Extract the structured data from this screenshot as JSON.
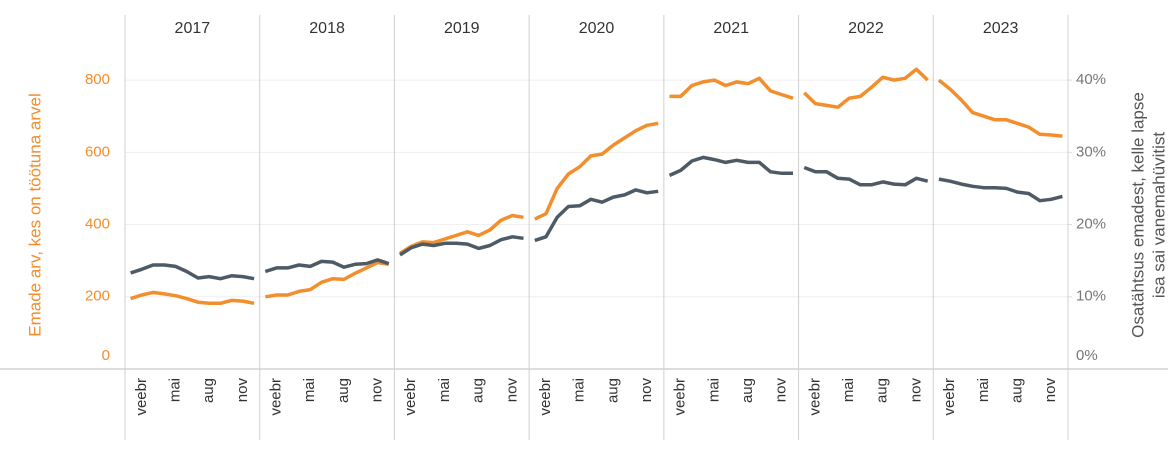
{
  "chart_data": {
    "type": "line",
    "facets": [
      "2017",
      "2018",
      "2019",
      "2020",
      "2021",
      "2022",
      "2023"
    ],
    "categories": [
      null,
      "veebr",
      null,
      null,
      "mai",
      null,
      null,
      "aug",
      null,
      null,
      "nov",
      null
    ],
    "ylabel": "Emade arv, kes on töötuna arvel",
    "y2label": [
      "Osatähtsus emadest, kelle lapse",
      "isa sai vanemahüvitist"
    ],
    "ylim": [
      0,
      900
    ],
    "yticks": [
      0,
      200,
      400,
      600,
      800
    ],
    "y2lim": [
      0,
      45
    ],
    "y2ticks": [
      {
        "value": 0,
        "label": "0%"
      },
      {
        "value": 10,
        "label": "10%"
      },
      {
        "value": 20,
        "label": "20%"
      },
      {
        "value": 30,
        "label": "30%"
      },
      {
        "value": 40,
        "label": "40%"
      }
    ],
    "grid": true,
    "series": [
      {
        "color": "#f28e2b",
        "values": [
          [
            195,
            205,
            212,
            208,
            203,
            195,
            185,
            182,
            182,
            190,
            188,
            182
          ],
          [
            200,
            205,
            205,
            215,
            220,
            240,
            250,
            248,
            265,
            280,
            295,
            290
          ],
          [
            320,
            340,
            352,
            350,
            360,
            370,
            380,
            370,
            385,
            412,
            425,
            420
          ],
          [
            415,
            430,
            500,
            540,
            560,
            590,
            595,
            620,
            640,
            660,
            675,
            680
          ],
          [
            755,
            755,
            785,
            795,
            800,
            785,
            795,
            790,
            805,
            770,
            760,
            750
          ],
          [
            765,
            735,
            730,
            725,
            750,
            755,
            780,
            808,
            800,
            805,
            830,
            800
          ],
          [
            800,
            775,
            745,
            710,
            700,
            690,
            690,
            680,
            670,
            650,
            648,
            645
          ]
        ]
      },
      {
        "color": "#4e5a65",
        "axis": "y2",
        "values": [
          [
            13.3,
            13.8,
            14.4,
            14.4,
            14.2,
            13.5,
            12.6,
            12.8,
            12.5,
            12.9,
            12.8,
            12.5
          ],
          [
            13.5,
            14.0,
            14.0,
            14.4,
            14.2,
            14.9,
            14.8,
            14.1,
            14.5,
            14.6,
            15.1,
            14.6
          ],
          [
            15.8,
            16.8,
            17.3,
            17.1,
            17.4,
            17.4,
            17.3,
            16.7,
            17.1,
            17.9,
            18.3,
            18.1
          ],
          [
            17.8,
            18.3,
            21.0,
            22.5,
            22.6,
            23.5,
            23.1,
            23.8,
            24.1,
            24.8,
            24.4,
            24.6
          ],
          [
            26.8,
            27.5,
            28.8,
            29.3,
            29.0,
            28.6,
            28.9,
            28.6,
            28.6,
            27.3,
            27.1,
            27.1
          ],
          [
            27.9,
            27.3,
            27.3,
            26.4,
            26.3,
            25.5,
            25.5,
            25.9,
            25.6,
            25.5,
            26.4,
            26.0
          ],
          [
            26.3,
            26.0,
            25.6,
            25.3,
            25.1,
            25.1,
            25.0,
            24.5,
            24.3,
            23.3,
            23.5,
            23.9
          ]
        ]
      }
    ]
  }
}
